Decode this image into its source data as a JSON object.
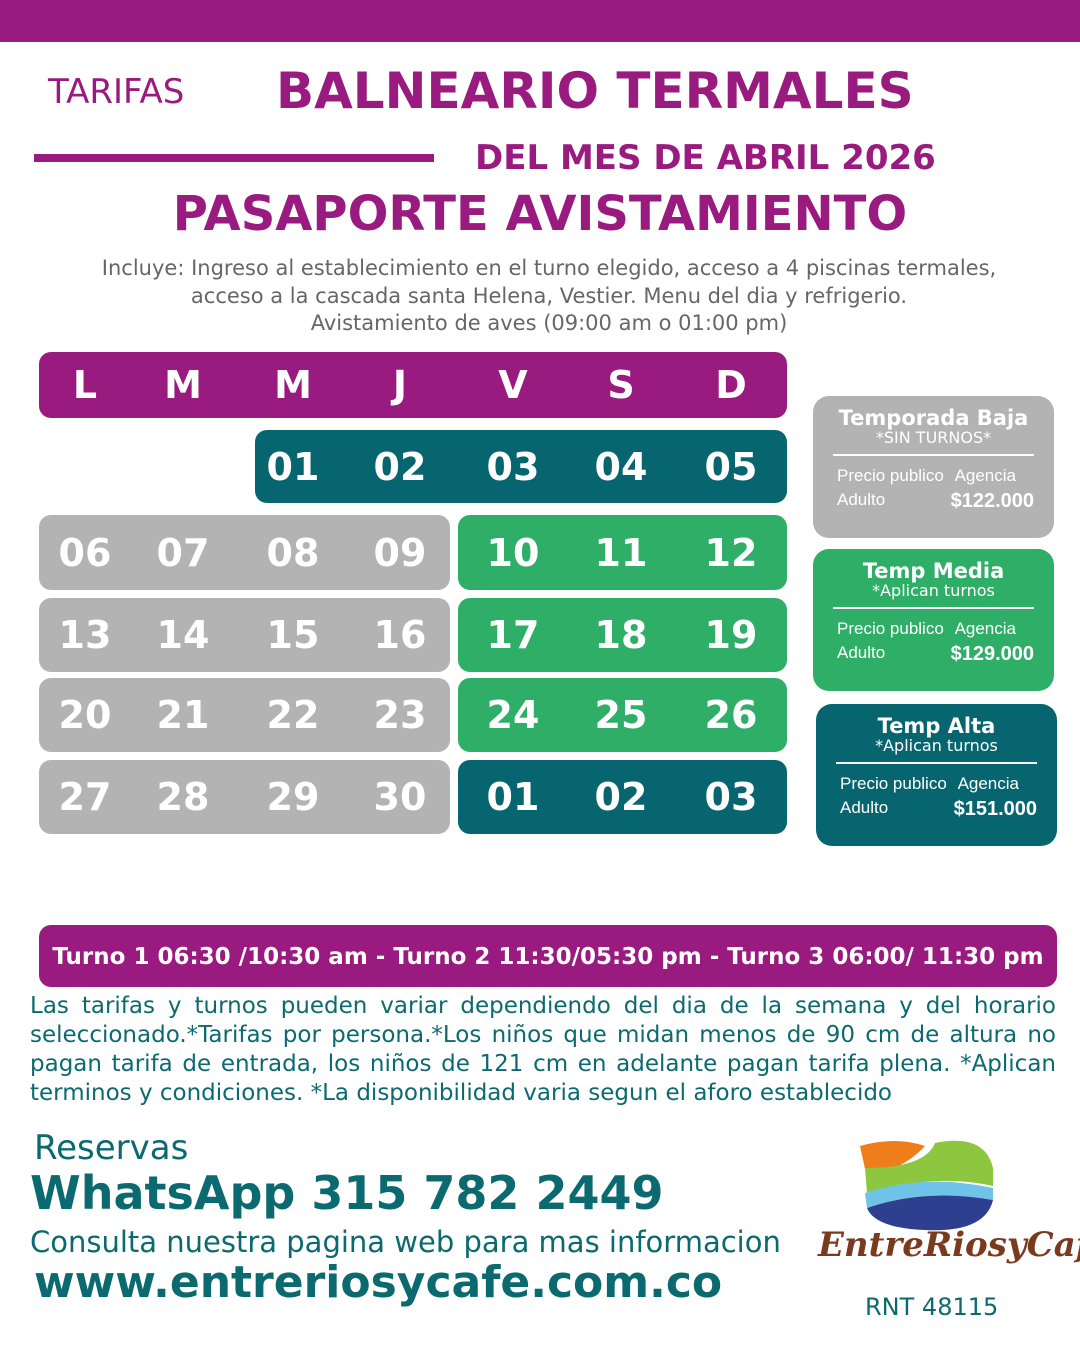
{
  "header": {
    "tarifas": "TARIFAS",
    "title": "BALNEARIO TERMALES",
    "month": "DEL MES DE ABRIL 2026",
    "plan": "PASAPORTE AVISTAMIENTO",
    "includes": [
      "Incluye: Ingreso al establecimiento en el turno elegido, acceso a 4 piscinas termales,",
      "acceso a la cascada santa Helena, Vestier. Menu del dia y refrigerio.",
      "Avistamiento de aves (09:00 am o 01:00 pm)"
    ]
  },
  "colors": {
    "purple": "#9a1b7f",
    "teal": "#07656f",
    "green": "#2fae68",
    "gray": "#b3b3b3"
  },
  "calendar": {
    "weekdays": [
      "L",
      "M",
      "M",
      "J",
      "V",
      "S",
      "D"
    ],
    "rows": [
      {
        "segments": [
          {
            "season": "alta",
            "days": [
              "01",
              "02",
              "03",
              "04",
              "05"
            ],
            "start": 2
          }
        ]
      },
      {
        "segments": [
          {
            "season": "baja",
            "days": [
              "06",
              "07",
              "08",
              "09"
            ],
            "start": 0
          },
          {
            "season": "media",
            "days": [
              "10",
              "11",
              "12"
            ],
            "start": 4
          }
        ]
      },
      {
        "segments": [
          {
            "season": "baja",
            "days": [
              "13",
              "14",
              "15",
              "16"
            ],
            "start": 0
          },
          {
            "season": "media",
            "days": [
              "17",
              "18",
              "19"
            ],
            "start": 4
          }
        ]
      },
      {
        "segments": [
          {
            "season": "baja",
            "days": [
              "20",
              "21",
              "22",
              "23"
            ],
            "start": 0
          },
          {
            "season": "media",
            "days": [
              "24",
              "25",
              "26"
            ],
            "start": 4
          }
        ]
      },
      {
        "segments": [
          {
            "season": "baja",
            "days": [
              "27",
              "28",
              "29",
              "30"
            ],
            "start": 0
          },
          {
            "season": "alta",
            "days": [
              "01",
              "02",
              "03"
            ],
            "start": 4
          }
        ]
      }
    ]
  },
  "prices": [
    {
      "title": "Temporada Baja",
      "note": "*SIN TURNOS*",
      "col1": "Precio publico",
      "col2": "Agencia",
      "label": "Adulto",
      "price": "$122.000"
    },
    {
      "title": "Temp Media",
      "note": "*Aplican turnos",
      "col1": "Precio publico",
      "col2": "Agencia",
      "label": "Adulto",
      "price": "$129.000"
    },
    {
      "title": "Temp Alta",
      "note": "*Aplican turnos",
      "col1": "Precio publico",
      "col2": "Agencia",
      "label": "Adulto",
      "price": "$151.000"
    }
  ],
  "turnos": "Turno 1 06:30 /10:30 am - Turno 2 11:30/05:30 pm - Turno 3 06:00/ 11:30 pm",
  "terms": "Las tarifas y turnos pueden variar dependiendo del dia de la semana y del horario seleccionado.*Tarifas por persona.*Los niños que midan menos de 90 cm de altura no pagan tarifa de entrada, los niños de 121 cm en adelante pagan tarifa plena. *Aplican terminos y condiciones. *La disponibilidad varia segun el aforo establecido",
  "contact": {
    "reservas": "Reservas",
    "whatsapp": "WhatsApp 315 782 2449",
    "consulta": "Consulta nuestra pagina web para mas informacion",
    "web": "www.entreriosycafe.com.co"
  },
  "logo": {
    "text": "EntreRiosyCafe",
    "rnt": "RNT 48115"
  }
}
